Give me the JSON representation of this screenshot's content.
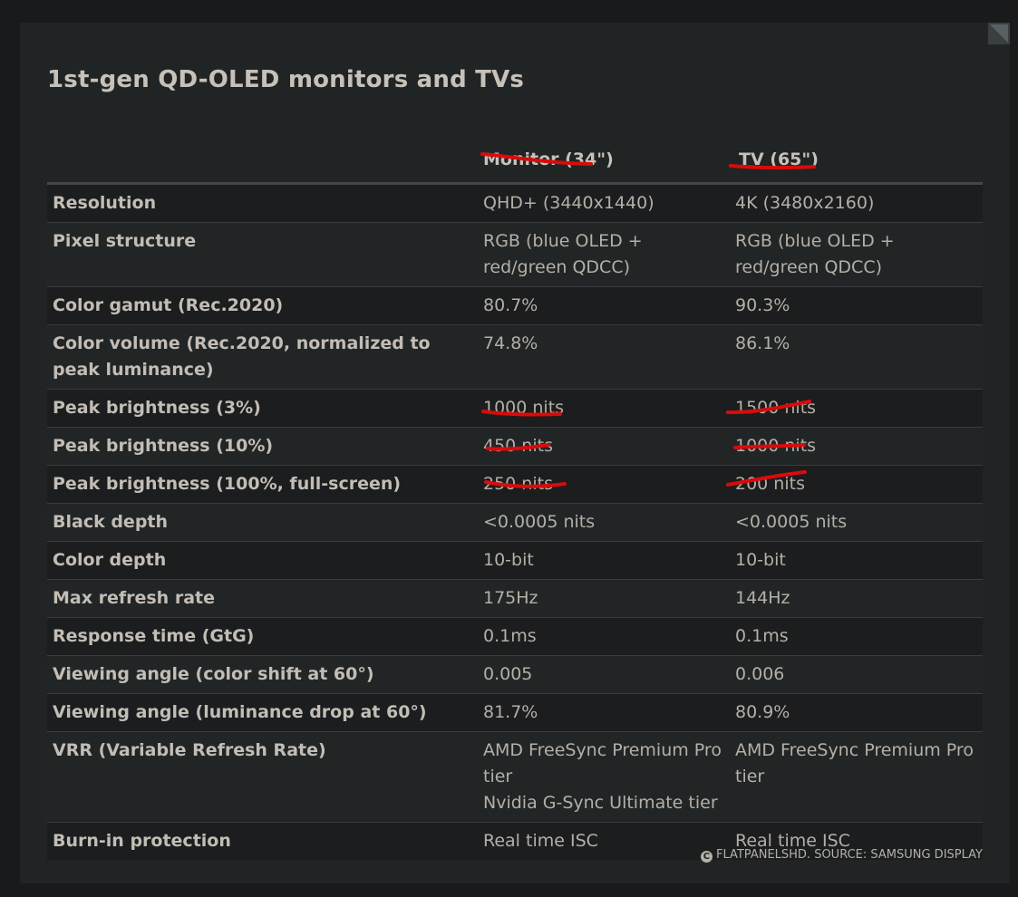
{
  "title": "1st-gen QD-OLED monitors and TVs",
  "columns": [
    "",
    "Monitor (34\")",
    "TV (65\")"
  ],
  "rows": [
    {
      "label": "Resolution",
      "monitor": [
        "QHD+ (3440x1440)"
      ],
      "tv": [
        "4K (3480x2160)"
      ]
    },
    {
      "label": "Pixel structure",
      "monitor": [
        "RGB (blue OLED + red/green QDCC)"
      ],
      "tv": [
        "RGB (blue OLED + red/green QDCC)"
      ]
    },
    {
      "label": "Color gamut (Rec.2020)",
      "monitor": [
        "80.7%"
      ],
      "tv": [
        "90.3%"
      ]
    },
    {
      "label": "Color volume (Rec.2020, normalized to peak luminance)",
      "monitor": [
        "74.8%"
      ],
      "tv": [
        "86.1%"
      ]
    },
    {
      "label": "Peak brightness (3%)",
      "monitor": [
        "1000 nits"
      ],
      "tv": [
        "1500 nits"
      ]
    },
    {
      "label": "Peak brightness (10%)",
      "monitor": [
        "450 nits"
      ],
      "tv": [
        "1000 nits"
      ]
    },
    {
      "label": "Peak brightness (100%, full-screen)",
      "monitor": [
        "250 nits"
      ],
      "tv": [
        "200 nits"
      ]
    },
    {
      "label": "Black depth",
      "monitor": [
        "<0.0005 nits"
      ],
      "tv": [
        "<0.0005 nits"
      ]
    },
    {
      "label": "Color depth",
      "monitor": [
        "10-bit"
      ],
      "tv": [
        "10-bit"
      ]
    },
    {
      "label": "Max refresh rate",
      "monitor": [
        "175Hz"
      ],
      "tv": [
        "144Hz"
      ]
    },
    {
      "label": "Response time (GtG)",
      "monitor": [
        "0.1ms"
      ],
      "tv": [
        "0.1ms"
      ]
    },
    {
      "label": "Viewing angle (color shift at 60°)",
      "monitor": [
        "0.005"
      ],
      "tv": [
        "0.006"
      ]
    },
    {
      "label": "Viewing angle (luminance drop at 60°)",
      "monitor": [
        "81.7%"
      ],
      "tv": [
        "80.9%"
      ]
    },
    {
      "label": "VRR (Variable Refresh Rate)",
      "monitor": [
        "AMD FreeSync Premium Pro tier",
        "Nvidia G-Sync Ultimate tier"
      ],
      "tv": [
        "AMD FreeSync Premium Pro tier"
      ]
    },
    {
      "label": "Burn-in protection",
      "monitor": [
        "Real time ISC"
      ],
      "tv": [
        "Real time ISC"
      ]
    }
  ],
  "credit": {
    "icon": "copyright-icon",
    "symbol": "C",
    "text": "FLATPANELSHD. SOURCE: SAMSUNG DISPLAY"
  },
  "annotation": {
    "color": "#d90b0b"
  }
}
